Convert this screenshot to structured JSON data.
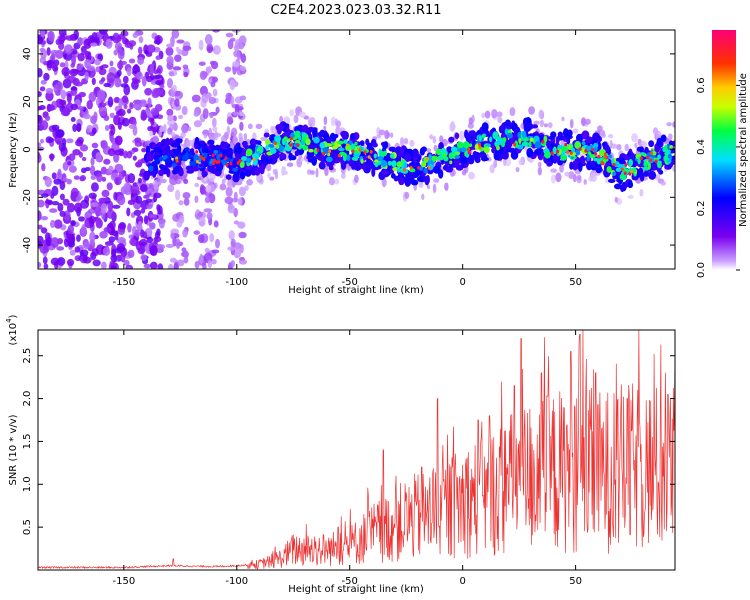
{
  "title": "C2E4.2023.023.03.32.R11",
  "chart_data": [
    {
      "type": "heatmap",
      "xlabel": "Height of straight line (km)",
      "ylabel": "Frequency (Hz)",
      "xlim": [
        -188,
        94
      ],
      "ylim": [
        -50,
        50
      ],
      "xticks": [
        -150,
        -100,
        -50,
        0,
        50
      ],
      "yticks": [
        -40,
        -20,
        0,
        20,
        40
      ],
      "colorbar": {
        "label": "Normalized spectral amplitude",
        "range": [
          0.0,
          0.78
        ],
        "ticks": [
          0.0,
          0.2,
          0.4,
          0.6
        ],
        "colors": [
          "#ffffff",
          "#8a2be2",
          "#0000ff",
          "#00e5ff",
          "#00ff00",
          "#ffff00",
          "#ff8000",
          "#ff0000",
          "#ff1493"
        ]
      },
      "ridge": {
        "x": [
          -140,
          -130,
          -120,
          -110,
          -100,
          -90,
          -80,
          -70,
          -60,
          -50,
          -40,
          -30,
          -20,
          -10,
          0,
          10,
          20,
          30,
          40,
          50,
          60,
          70,
          80,
          90
        ],
        "y": [
          -5,
          -3,
          -3,
          -4,
          -5,
          -2,
          3,
          4,
          -1,
          0,
          -3,
          -6,
          -8,
          -4,
          0,
          3,
          4,
          5,
          0,
          0,
          -2,
          -10,
          -5,
          -2
        ]
      },
      "noise_regions": [
        [
          -188,
          -133
        ],
        [
          -130,
          -122
        ],
        [
          -118,
          -108
        ],
        [
          -104,
          -97
        ]
      ]
    },
    {
      "type": "line",
      "xlabel": "Height of straight line (km)",
      "ylabel": "SNR (10 * v/v)",
      "yunit": "(x10",
      "yunit_exp": "4",
      "yunit_close": ")",
      "xlim": [
        -188,
        94
      ],
      "ylim": [
        0,
        2.8
      ],
      "xticks": [
        -150,
        -100,
        -50,
        0,
        50
      ],
      "yticks": [
        0.5,
        1.0,
        1.5,
        2.0,
        2.5
      ],
      "series": [
        {
          "color": "#ee3333",
          "x": [
            -188,
            -150,
            -130,
            -110,
            -100,
            -90,
            -80,
            -75,
            -70,
            -60,
            -50,
            -40,
            -30,
            -25,
            -20,
            -10,
            0,
            10,
            20,
            30,
            40,
            50,
            60,
            70,
            80,
            94
          ],
          "y": [
            0.03,
            0.03,
            0.05,
            0.04,
            0.05,
            0.07,
            0.15,
            0.25,
            0.25,
            0.25,
            0.3,
            0.45,
            0.55,
            0.62,
            0.65,
            0.7,
            0.85,
            0.9,
            1.05,
            1.15,
            1.2,
            1.25,
            1.2,
            1.25,
            1.25,
            1.25
          ]
        }
      ],
      "spikes": [
        [
          -128,
          0.13
        ],
        [
          -85,
          0.1
        ],
        [
          -55,
          0.5
        ],
        [
          -35,
          1.4
        ],
        [
          -18,
          1.2
        ],
        [
          -11,
          2.0
        ],
        [
          7,
          1.75
        ],
        [
          12,
          1.8
        ],
        [
          23,
          2.15
        ],
        [
          26,
          2.7
        ],
        [
          35,
          2.3
        ],
        [
          48,
          2.55
        ],
        [
          52,
          2.75
        ],
        [
          59,
          2.3
        ],
        [
          73,
          2.0
        ],
        [
          91,
          2.05
        ]
      ]
    }
  ]
}
